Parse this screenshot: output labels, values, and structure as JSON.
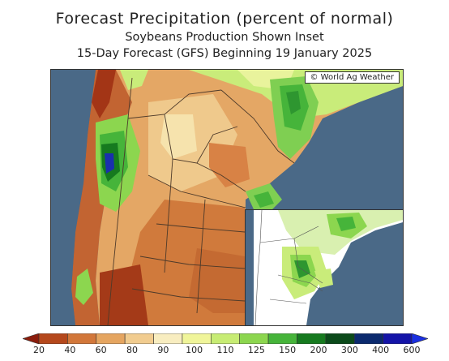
{
  "title": "Forecast Precipitation (percent of normal)",
  "subtitle": "Soybeans Production Shown Inset",
  "subtitle2": "15-Day Forecast (GFS) Beginning 19 January 2025",
  "credit": "© World Ag Weather",
  "legend": {
    "labels": [
      "20",
      "40",
      "60",
      "80",
      "90",
      "100",
      "110",
      "125",
      "150",
      "200",
      "300",
      "400",
      "600"
    ],
    "colors": [
      "#8b1d0c",
      "#b5481c",
      "#d2773a",
      "#e5a560",
      "#f1cc8f",
      "#f8edc0",
      "#f0f59a",
      "#c7ec74",
      "#8cd64f",
      "#46b43a",
      "#167a1f",
      "#0b4a1a",
      "#0b2a6e",
      "#1414a8",
      "#1a2fe0"
    ]
  }
}
